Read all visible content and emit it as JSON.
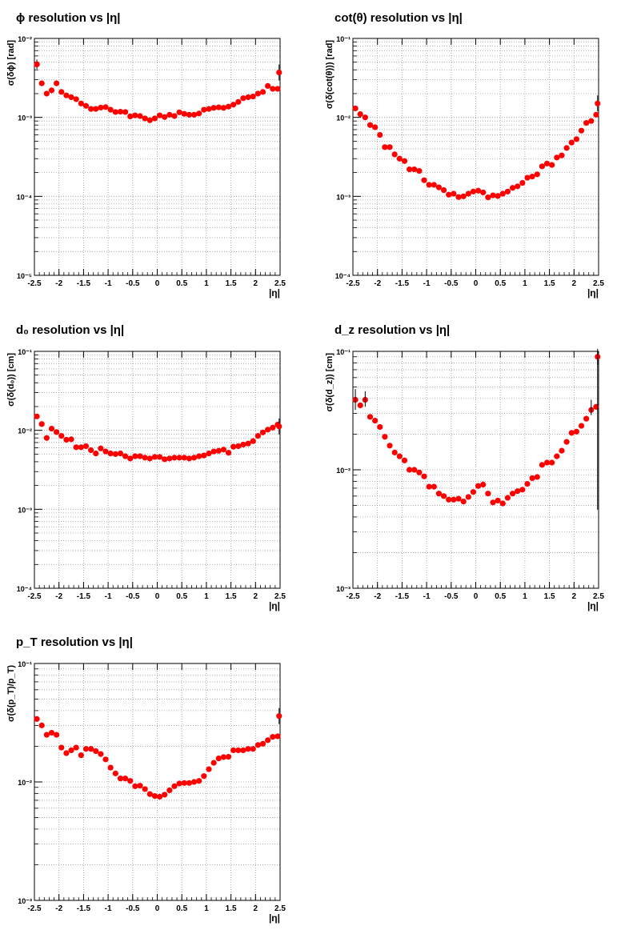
{
  "chart_data": [
    {
      "type": "scatter",
      "title": "ϕ resolution vs |η|",
      "xlabel": "|η|",
      "ylabel": "σ(δϕ) [rad]",
      "xlim": [
        -2.5,
        2.5
      ],
      "ylim": [
        1e-05,
        0.01
      ],
      "yscale": "log",
      "grid": true,
      "x_ticks": [
        "-2.5",
        "-2",
        "-1.5",
        "-1",
        "-0.5",
        "0",
        "0.5",
        "1",
        "1.5",
        "2",
        "2.5"
      ],
      "y_ticks": [
        "10⁻⁵",
        "10⁻⁴",
        "10⁻³",
        "10⁻²"
      ],
      "series": [
        {
          "x": [
            -2.45,
            -2.35,
            -2.25,
            -2.15,
            -2.05,
            -1.95,
            -1.85,
            -1.75,
            -1.65,
            -1.55,
            -1.45,
            -1.35,
            -1.25,
            -1.15,
            -1.05,
            -0.95,
            -0.85,
            -0.75,
            -0.65,
            -0.55,
            -0.45,
            -0.35,
            -0.25,
            -0.15,
            -0.05,
            0.05,
            0.15,
            0.25,
            0.35,
            0.45,
            0.55,
            0.65,
            0.75,
            0.85,
            0.95,
            1.05,
            1.15,
            1.25,
            1.35,
            1.45,
            1.55,
            1.65,
            1.75,
            1.85,
            1.95,
            2.05,
            2.15,
            2.25,
            2.35,
            2.45
          ],
          "y": [
            0.0047,
            0.0027,
            0.002,
            0.0022,
            0.0027,
            0.0021,
            0.0019,
            0.0018,
            0.0017,
            0.0015,
            0.0014,
            0.00128,
            0.00128,
            0.00133,
            0.00135,
            0.00125,
            0.00117,
            0.00118,
            0.00117,
            0.00103,
            0.00106,
            0.00104,
            0.00097,
            0.00092,
            0.00097,
            0.00106,
            0.00101,
            0.00108,
            0.00104,
            0.00116,
            0.00111,
            0.00108,
            0.00108,
            0.00112,
            0.00125,
            0.00128,
            0.00132,
            0.00134,
            0.00132,
            0.00137,
            0.00145,
            0.00157,
            0.00175,
            0.0018,
            0.00184,
            0.002,
            0.0021,
            0.0025,
            0.0023,
            0.0023
          ],
          "errors_shown": [
            0.0047,
            0.0037
          ]
        }
      ],
      "last_point": 0.0037
    },
    {
      "type": "scatter",
      "title": "cot(θ) resolution vs |η|",
      "xlabel": "|η|",
      "ylabel": "σ(δ(cot(θ))) [rad]",
      "xlim": [
        -2.5,
        2.5
      ],
      "ylim": [
        0.0001,
        0.1
      ],
      "yscale": "log",
      "grid": true,
      "x_ticks": [
        "-2.5",
        "-2",
        "-1.5",
        "-1",
        "-0.5",
        "0",
        "0.5",
        "1",
        "1.5",
        "2",
        "2.5"
      ],
      "y_ticks": [
        "10⁻⁴",
        "10⁻³",
        "10⁻²",
        "10⁻¹"
      ],
      "series": [
        {
          "x": [
            -2.45,
            -2.35,
            -2.25,
            -2.15,
            -2.05,
            -1.95,
            -1.85,
            -1.75,
            -1.65,
            -1.55,
            -1.45,
            -1.35,
            -1.25,
            -1.15,
            -1.05,
            -0.95,
            -0.85,
            -0.75,
            -0.65,
            -0.55,
            -0.45,
            -0.35,
            -0.25,
            -0.15,
            -0.05,
            0.05,
            0.15,
            0.25,
            0.35,
            0.45,
            0.55,
            0.65,
            0.75,
            0.85,
            0.95,
            1.05,
            1.15,
            1.25,
            1.35,
            1.45,
            1.55,
            1.65,
            1.75,
            1.85,
            1.95,
            2.05,
            2.15,
            2.25,
            2.35,
            2.45
          ],
          "y": [
            0.013,
            0.011,
            0.01,
            0.008,
            0.0075,
            0.006,
            0.0042,
            0.0042,
            0.0034,
            0.003,
            0.0028,
            0.0022,
            0.0022,
            0.0021,
            0.0016,
            0.0014,
            0.0014,
            0.0013,
            0.0012,
            0.00105,
            0.00108,
            0.00098,
            0.001,
            0.00108,
            0.00115,
            0.00118,
            0.00112,
            0.00097,
            0.00103,
            0.00101,
            0.00108,
            0.00115,
            0.00128,
            0.00134,
            0.00148,
            0.00172,
            0.00178,
            0.0019,
            0.0024,
            0.0026,
            0.0025,
            0.0031,
            0.0033,
            0.0041,
            0.0048,
            0.0053,
            0.0068,
            0.0085,
            0.009,
            0.0108
          ],
          "last_point": 0.015
        }
      ]
    },
    {
      "type": "scatter",
      "title": "d₀ resolution vs |η|",
      "xlabel": "|η|",
      "ylabel": "σ(δ(d₀)) [cm]",
      "xlim": [
        -2.5,
        2.5
      ],
      "ylim": [
        0.0001,
        0.1
      ],
      "yscale": "log",
      "grid": true,
      "x_ticks": [
        "-2.5",
        "-2",
        "-1.5",
        "-1",
        "-0.5",
        "0",
        "0.5",
        "1",
        "1.5",
        "2",
        "2.5"
      ],
      "y_ticks": [
        "10⁻⁴",
        "10⁻³",
        "10⁻²",
        "10⁻¹"
      ],
      "series": [
        {
          "x": [
            -2.45,
            -2.35,
            -2.25,
            -2.15,
            -2.05,
            -1.95,
            -1.85,
            -1.75,
            -1.65,
            -1.55,
            -1.45,
            -1.35,
            -1.25,
            -1.15,
            -1.05,
            -0.95,
            -0.85,
            -0.75,
            -0.65,
            -0.55,
            -0.45,
            -0.35,
            -0.25,
            -0.15,
            -0.05,
            0.05,
            0.15,
            0.25,
            0.35,
            0.45,
            0.55,
            0.65,
            0.75,
            0.85,
            0.95,
            1.05,
            1.15,
            1.25,
            1.35,
            1.45,
            1.55,
            1.65,
            1.75,
            1.85,
            1.95,
            2.05,
            2.15,
            2.25,
            2.35,
            2.45
          ],
          "y": [
            0.015,
            0.012,
            0.008,
            0.0105,
            0.0095,
            0.0085,
            0.0076,
            0.0077,
            0.0061,
            0.0061,
            0.0063,
            0.0056,
            0.0051,
            0.0059,
            0.0054,
            0.0051,
            0.005,
            0.0051,
            0.0047,
            0.0044,
            0.0047,
            0.0047,
            0.0045,
            0.0044,
            0.0046,
            0.0046,
            0.0043,
            0.0044,
            0.0045,
            0.0045,
            0.0045,
            0.0044,
            0.0045,
            0.0047,
            0.0048,
            0.0051,
            0.0054,
            0.0055,
            0.0057,
            0.0052,
            0.0062,
            0.0063,
            0.0066,
            0.0068,
            0.0073,
            0.0085,
            0.0094,
            0.0102,
            0.0108,
            0.0118
          ],
          "last_point": 0.0112
        }
      ]
    },
    {
      "type": "scatter",
      "title": "d_z resolution vs |η|",
      "xlabel": "|η|",
      "ylabel": "σ(δ(d_z)) [cm]",
      "xlim": [
        -2.5,
        2.5
      ],
      "ylim": [
        0.001,
        0.1
      ],
      "yscale": "log",
      "grid": true,
      "x_ticks": [
        "-2.5",
        "-2",
        "-1.5",
        "-1",
        "-0.5",
        "0",
        "0.5",
        "1",
        "1.5",
        "2",
        "2.5"
      ],
      "y_ticks": [
        "10⁻³",
        "10⁻²",
        "10⁻¹"
      ],
      "series": [
        {
          "x": [
            -2.45,
            -2.35,
            -2.25,
            -2.15,
            -2.05,
            -1.95,
            -1.85,
            -1.75,
            -1.65,
            -1.55,
            -1.45,
            -1.35,
            -1.25,
            -1.15,
            -1.05,
            -0.95,
            -0.85,
            -0.75,
            -0.65,
            -0.55,
            -0.45,
            -0.35,
            -0.25,
            -0.15,
            -0.05,
            0.05,
            0.15,
            0.25,
            0.35,
            0.45,
            0.55,
            0.65,
            0.75,
            0.85,
            0.95,
            1.05,
            1.15,
            1.25,
            1.35,
            1.45,
            1.55,
            1.65,
            1.75,
            1.85,
            1.95,
            2.05,
            2.15,
            2.25,
            2.35,
            2.45
          ],
          "y": [
            0.039,
            0.035,
            0.039,
            0.028,
            0.026,
            0.023,
            0.019,
            0.016,
            0.014,
            0.013,
            0.012,
            0.01,
            0.01,
            0.0095,
            0.0088,
            0.0072,
            0.0072,
            0.0063,
            0.006,
            0.0056,
            0.0056,
            0.0057,
            0.0054,
            0.0059,
            0.0065,
            0.0073,
            0.0075,
            0.0063,
            0.0053,
            0.0055,
            0.0052,
            0.0058,
            0.0063,
            0.0066,
            0.0068,
            0.0076,
            0.0085,
            0.0087,
            0.011,
            0.0115,
            0.0115,
            0.013,
            0.0145,
            0.0172,
            0.0205,
            0.021,
            0.0235,
            0.027,
            0.032,
            0.034
          ],
          "last_point": 0.09
        }
      ]
    },
    {
      "type": "scatter",
      "title": "p_T resolution vs |η|",
      "xlabel": "|η|",
      "ylabel": "σ(δ(p_T)/p_T)",
      "xlim": [
        -2.5,
        2.5
      ],
      "ylim": [
        0.001,
        0.1
      ],
      "yscale": "log",
      "grid": true,
      "x_ticks": [
        "-2.5",
        "-2",
        "-1.5",
        "-1",
        "-0.5",
        "0",
        "0.5",
        "1",
        "1.5",
        "2",
        "2.5"
      ],
      "y_ticks": [
        "10⁻³",
        "10⁻²",
        "10⁻¹"
      ],
      "series": [
        {
          "x": [
            -2.45,
            -2.35,
            -2.25,
            -2.15,
            -2.05,
            -1.95,
            -1.85,
            -1.75,
            -1.65,
            -1.55,
            -1.45,
            -1.35,
            -1.25,
            -1.15,
            -1.05,
            -0.95,
            -0.85,
            -0.75,
            -0.65,
            -0.55,
            -0.45,
            -0.35,
            -0.25,
            -0.15,
            -0.05,
            0.05,
            0.15,
            0.25,
            0.35,
            0.45,
            0.55,
            0.65,
            0.75,
            0.85,
            0.95,
            1.05,
            1.15,
            1.25,
            1.35,
            1.45,
            1.55,
            1.65,
            1.75,
            1.85,
            1.95,
            2.05,
            2.15,
            2.25,
            2.35,
            2.45
          ],
          "y": [
            0.034,
            0.03,
            0.025,
            0.026,
            0.025,
            0.0195,
            0.0175,
            0.0185,
            0.0195,
            0.0168,
            0.019,
            0.019,
            0.0182,
            0.0172,
            0.0155,
            0.0132,
            0.0118,
            0.0107,
            0.0107,
            0.0102,
            0.0092,
            0.0093,
            0.0087,
            0.0079,
            0.0076,
            0.0075,
            0.0078,
            0.0085,
            0.0092,
            0.0097,
            0.0098,
            0.0098,
            0.01,
            0.0102,
            0.0112,
            0.0128,
            0.0145,
            0.0158,
            0.0162,
            0.0163,
            0.0185,
            0.0185,
            0.0185,
            0.019,
            0.019,
            0.0205,
            0.021,
            0.0225,
            0.024,
            0.0243
          ],
          "last_point": 0.036
        }
      ]
    }
  ]
}
